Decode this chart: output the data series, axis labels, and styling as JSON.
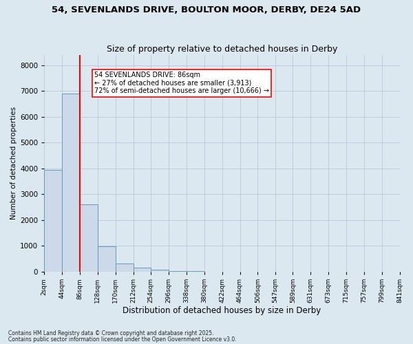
{
  "title_line1": "54, SEVENLANDS DRIVE, BOULTON MOOR, DERBY, DE24 5AD",
  "title_line2": "Size of property relative to detached houses in Derby",
  "xlabel": "Distribution of detached houses by size in Derby",
  "ylabel": "Number of detached properties",
  "bar_color": "#ccd9e8",
  "bar_edge_color": "#6699bb",
  "bar_edge_width": 0.7,
  "vline_x": 86,
  "vline_color": "red",
  "background_color": "#dce8f0",
  "annotation_text": "54 SEVENLANDS DRIVE: 86sqm\n← 27% of detached houses are smaller (3,913)\n72% of semi-detached houses are larger (10,666) →",
  "annotation_box_color": "white",
  "annotation_box_edge": "red",
  "footnote1": "Contains HM Land Registry data © Crown copyright and database right 2025.",
  "footnote2": "Contains public sector information licensed under the Open Government Licence v3.0.",
  "bin_edges": [
    2,
    44,
    86,
    128,
    170,
    212,
    254,
    296,
    338,
    380,
    422,
    464,
    506,
    547,
    589,
    631,
    673,
    715,
    757,
    799,
    841
  ],
  "bar_heights": [
    3950,
    6900,
    2600,
    980,
    320,
    145,
    70,
    35,
    12,
    0,
    0,
    0,
    0,
    0,
    0,
    0,
    0,
    0,
    0,
    0
  ],
  "ylim": [
    0,
    8400
  ],
  "yticks": [
    0,
    1000,
    2000,
    3000,
    4000,
    5000,
    6000,
    7000,
    8000
  ],
  "grid_color": "#b8c8d8",
  "figsize": [
    6.0,
    5.0
  ],
  "dpi": 100,
  "title_fontsize": 9.5,
  "subtitle_fontsize": 9,
  "xlabel_fontsize": 8.5,
  "ylabel_fontsize": 7.5,
  "xtick_fontsize": 6.5,
  "ytick_fontsize": 7.5,
  "footnote_fontsize": 5.5,
  "annot_fontsize": 7
}
